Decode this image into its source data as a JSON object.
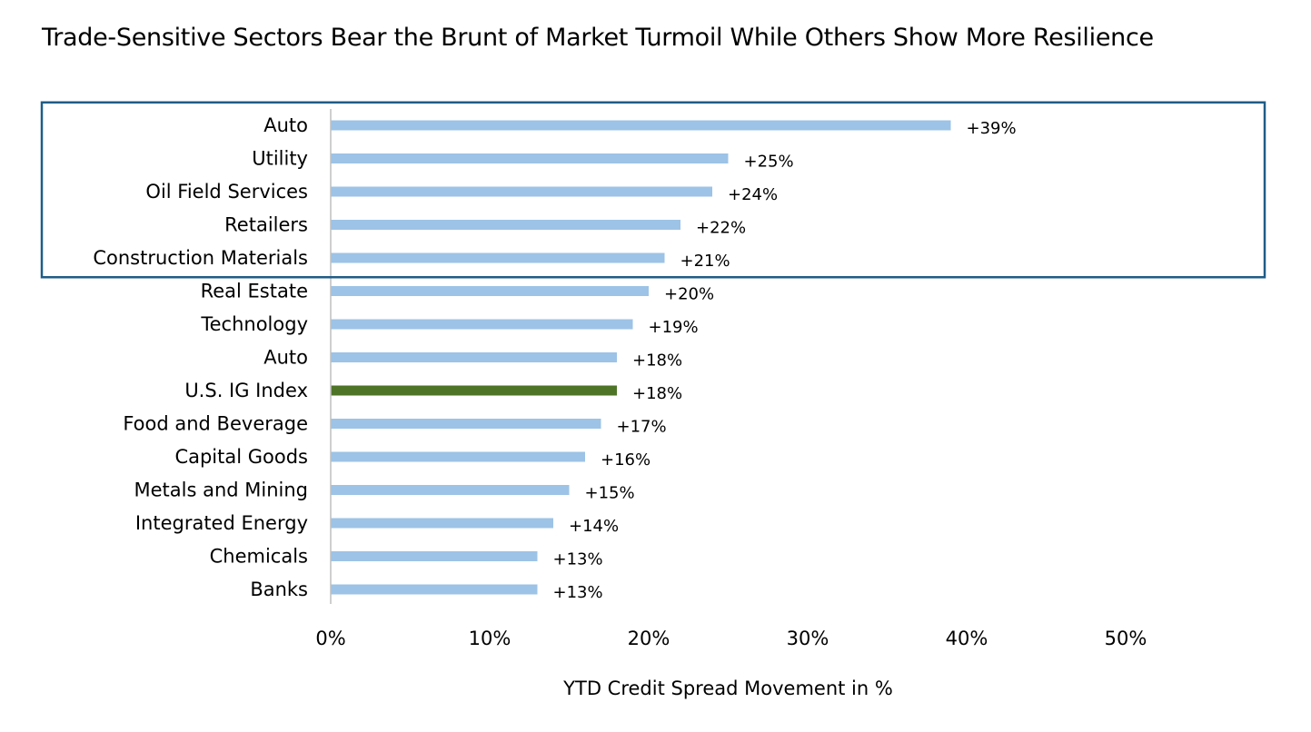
{
  "chart_data": {
    "type": "bar",
    "orientation": "horizontal",
    "title": "Trade-Sensitive Sectors Bear the Brunt of Market Turmoil While Others Show More Resilience",
    "xlabel": "YTD Credit Spread Movement in %",
    "ylabel": "",
    "xlim": [
      0,
      50
    ],
    "x_ticks": [
      "0%",
      "10%",
      "20%",
      "30%",
      "40%",
      "50%"
    ],
    "grid": false,
    "categories": [
      "Auto",
      "Utility",
      "Oil Field Services",
      "Retailers",
      "Construction Materials",
      "Real Estate",
      "Technology",
      "Auto",
      "U.S. IG Index",
      "Food and Beverage",
      "Capital Goods",
      "Metals and Mining",
      "Integrated Energy",
      "Chemicals",
      "Banks"
    ],
    "values": [
      39,
      25,
      24,
      22,
      21,
      20,
      19,
      18,
      18,
      17,
      16,
      15,
      14,
      13,
      13
    ],
    "value_labels": [
      "+39%",
      "+25%",
      "+24%",
      "+22%",
      "+21%",
      "+20%",
      "+19%",
      "+18%",
      "+18%",
      "+17%",
      "+16%",
      "+15%",
      "+14%",
      "+13%",
      "+13%"
    ],
    "highlight_category_index": 8,
    "highlighted_box_first_n": 5,
    "colors": {
      "bar": "#9DC3E6",
      "highlight_bar": "#4E7428",
      "box": "#1F5C87",
      "axis": "#BFBFBF"
    }
  }
}
